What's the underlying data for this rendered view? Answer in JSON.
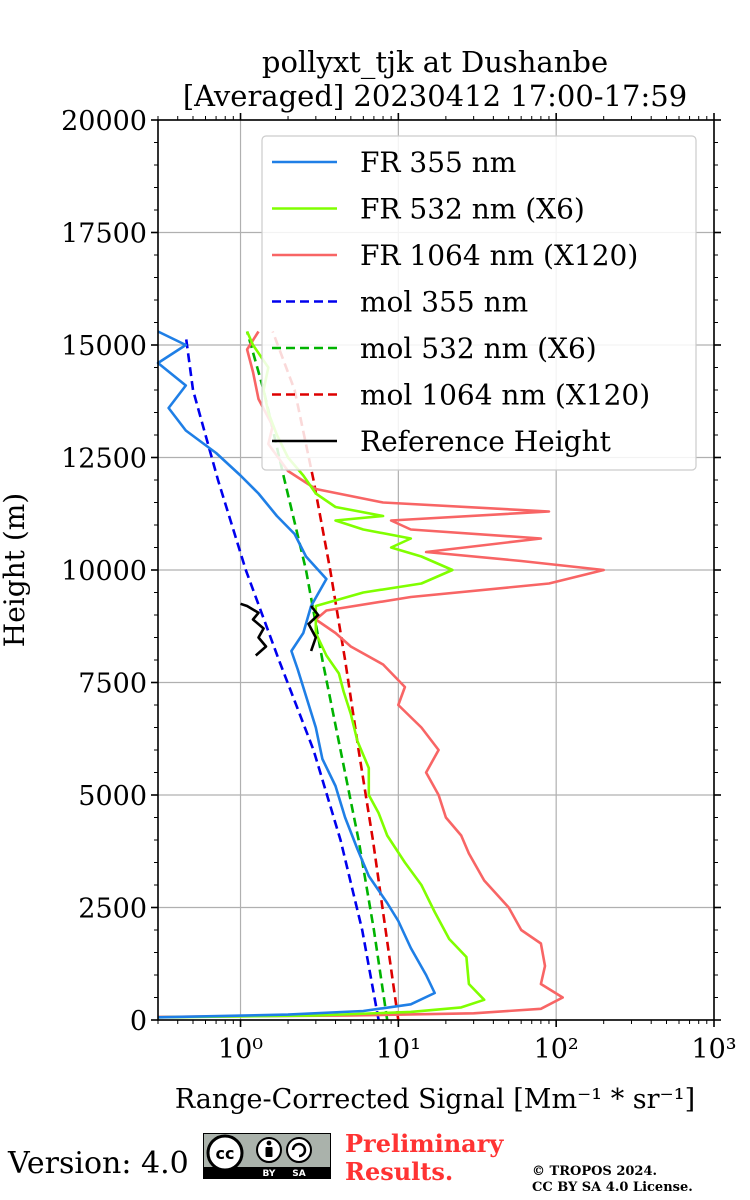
{
  "chart_data": {
    "type": "line",
    "title": "pollyxt_tjk at Dushanbe",
    "subtitle": "[Averaged] 20230412 17:00-17:59",
    "xlabel": "Range-Corrected Signal [Mm⁻¹ * sr⁻¹]",
    "ylabel": "Height (m)",
    "xscale": "log",
    "xlim": [
      0.3,
      1000
    ],
    "ylim": [
      0,
      20000
    ],
    "xticks": [
      1,
      10,
      100,
      1000
    ],
    "xtick_labels": [
      "10⁰",
      "10¹",
      "10²",
      "10³"
    ],
    "yticks": [
      0,
      2500,
      5000,
      7500,
      10000,
      12500,
      15000,
      17500,
      20000
    ],
    "ytick_labels": [
      "0",
      "2500",
      "5000",
      "7500",
      "10000",
      "12500",
      "15000",
      "17500",
      "20000"
    ],
    "grid": true,
    "legend_position": "top-right",
    "series": [
      {
        "name": "FR 355 nm",
        "color": "#1f7fe6",
        "dash": "solid",
        "points": [
          [
            0.3,
            60
          ],
          [
            2,
            120
          ],
          [
            6,
            200
          ],
          [
            12,
            350
          ],
          [
            17,
            600
          ],
          [
            15,
            1000
          ],
          [
            12,
            1600
          ],
          [
            10,
            2200
          ],
          [
            8.5,
            2600
          ],
          [
            6.5,
            3200
          ],
          [
            5.5,
            3800
          ],
          [
            4.6,
            4500
          ],
          [
            4,
            5200
          ],
          [
            3.3,
            5800
          ],
          [
            3,
            6500
          ],
          [
            2.6,
            7200
          ],
          [
            2.3,
            7800
          ],
          [
            2.1,
            8200
          ],
          [
            2.5,
            8600
          ],
          [
            2.8,
            9200
          ],
          [
            3.5,
            9800
          ],
          [
            2.6,
            10300
          ],
          [
            2.2,
            10800
          ],
          [
            1.7,
            11200
          ],
          [
            1.3,
            11700
          ],
          [
            1,
            12100
          ],
          [
            0.7,
            12600
          ],
          [
            0.45,
            13100
          ],
          [
            0.35,
            13600
          ],
          [
            0.45,
            14100
          ],
          [
            0.3,
            14600
          ],
          [
            0.45,
            15000
          ],
          [
            0.3,
            15300
          ]
        ]
      },
      {
        "name": "FR 532 nm (X6)",
        "color": "#80ff00",
        "dash": "solid",
        "points": [
          [
            0.3,
            60
          ],
          [
            3,
            100
          ],
          [
            12,
            180
          ],
          [
            25,
            280
          ],
          [
            35,
            450
          ],
          [
            28,
            800
          ],
          [
            27,
            1400
          ],
          [
            21,
            1800
          ],
          [
            17,
            2400
          ],
          [
            14,
            3000
          ],
          [
            11,
            3500
          ],
          [
            8.5,
            4100
          ],
          [
            7.5,
            4600
          ],
          [
            6.5,
            5000
          ],
          [
            6.5,
            5600
          ],
          [
            5.5,
            6200
          ],
          [
            5,
            6800
          ],
          [
            4.5,
            7300
          ],
          [
            4.2,
            7700
          ],
          [
            3.5,
            8100
          ],
          [
            3,
            8600
          ],
          [
            3,
            9200
          ],
          [
            6,
            9500
          ],
          [
            14,
            9700
          ],
          [
            22,
            10000
          ],
          [
            14,
            10300
          ],
          [
            9,
            10500
          ],
          [
            12,
            10700
          ],
          [
            6,
            10900
          ],
          [
            4,
            11100
          ],
          [
            8,
            11200
          ],
          [
            4,
            11400
          ],
          [
            3,
            11700
          ],
          [
            2.5,
            12100
          ],
          [
            2,
            12500
          ],
          [
            1.7,
            13000
          ],
          [
            1.5,
            13500
          ],
          [
            1.4,
            14000
          ],
          [
            1.5,
            14500
          ],
          [
            1.2,
            15000
          ],
          [
            1.1,
            15300
          ]
        ]
      },
      {
        "name": "FR 1064 nm (X120)",
        "color": "#f86565",
        "dash": "solid",
        "points": [
          [
            0.3,
            70
          ],
          [
            5,
            100
          ],
          [
            30,
            150
          ],
          [
            80,
            250
          ],
          [
            110,
            500
          ],
          [
            80,
            800
          ],
          [
            85,
            1200
          ],
          [
            80,
            1700
          ],
          [
            60,
            2000
          ],
          [
            50,
            2500
          ],
          [
            35,
            3100
          ],
          [
            28,
            3700
          ],
          [
            25,
            4100
          ],
          [
            20,
            4500
          ],
          [
            18,
            5000
          ],
          [
            15,
            5500
          ],
          [
            18,
            6000
          ],
          [
            14,
            6500
          ],
          [
            10,
            7000
          ],
          [
            11,
            7400
          ],
          [
            8,
            7900
          ],
          [
            5,
            8300
          ],
          [
            4,
            8600
          ],
          [
            3,
            8900
          ],
          [
            3.5,
            9100
          ],
          [
            12,
            9400
          ],
          [
            90,
            9700
          ],
          [
            200,
            10000
          ],
          [
            60,
            10200
          ],
          [
            15,
            10400
          ],
          [
            80,
            10700
          ],
          [
            12,
            10900
          ],
          [
            9,
            11100
          ],
          [
            90,
            11300
          ],
          [
            8,
            11500
          ],
          [
            3,
            11800
          ],
          [
            2,
            12200
          ],
          [
            1.5,
            12800
          ],
          [
            1.6,
            13200
          ],
          [
            1.3,
            13800
          ],
          [
            1.2,
            14400
          ],
          [
            1.1,
            14900
          ],
          [
            1.3,
            15300
          ]
        ]
      },
      {
        "name": "mol 355 nm",
        "color": "#0000ee",
        "dash": "dashed",
        "points": [
          [
            7.5,
            0
          ],
          [
            5.9,
            2000
          ],
          [
            4.3,
            4000
          ],
          [
            2.9,
            6000
          ],
          [
            1.75,
            8000
          ],
          [
            1.08,
            10000
          ],
          [
            0.72,
            12000
          ],
          [
            0.5,
            14000
          ],
          [
            0.45,
            15200
          ]
        ]
      },
      {
        "name": "mol 532 nm (X6)",
        "color": "#00b300",
        "dash": "dashed",
        "points": [
          [
            8.5,
            0
          ],
          [
            7,
            2000
          ],
          [
            5.6,
            4000
          ],
          [
            4.3,
            6000
          ],
          [
            3.3,
            8000
          ],
          [
            2.6,
            10000
          ],
          [
            1.9,
            12000
          ],
          [
            1.4,
            14000
          ],
          [
            1.1,
            15300
          ]
        ]
      },
      {
        "name": "mol 1064 nm (X120)",
        "color": "#dd0000",
        "dash": "dashed",
        "points": [
          [
            10,
            0
          ],
          [
            8.3,
            2000
          ],
          [
            6.9,
            4000
          ],
          [
            5.6,
            6000
          ],
          [
            4.6,
            8000
          ],
          [
            3.7,
            10000
          ],
          [
            2.9,
            12000
          ],
          [
            2.2,
            14000
          ],
          [
            1.6,
            15300
          ]
        ]
      },
      {
        "name": "Reference Height",
        "color": "#000000",
        "dash": "solid",
        "points": [
          [
            1.25,
            8100
          ],
          [
            1.45,
            8300
          ],
          [
            1.3,
            8500
          ],
          [
            1.4,
            8700
          ],
          [
            1.2,
            8900
          ],
          [
            1.3,
            9050
          ],
          [
            1.1,
            9200
          ],
          [
            1.0,
            9250
          ]
        ]
      }
    ],
    "reference_height_secondary": {
      "color": "#000000",
      "points": [
        [
          2.8,
          8200
        ],
        [
          3.0,
          8500
        ],
        [
          2.7,
          8800
        ],
        [
          3.1,
          9000
        ],
        [
          2.8,
          9200
        ]
      ]
    }
  },
  "footer": {
    "version": "Version: 4.0",
    "license_badge_text": [
      "BY",
      "SA"
    ],
    "preliminary_line1": "Preliminary",
    "preliminary_line2": "Results.",
    "copyright_line1": "© TROPOS 2024.",
    "copyright_line2": "CC BY SA 4.0 License."
  }
}
